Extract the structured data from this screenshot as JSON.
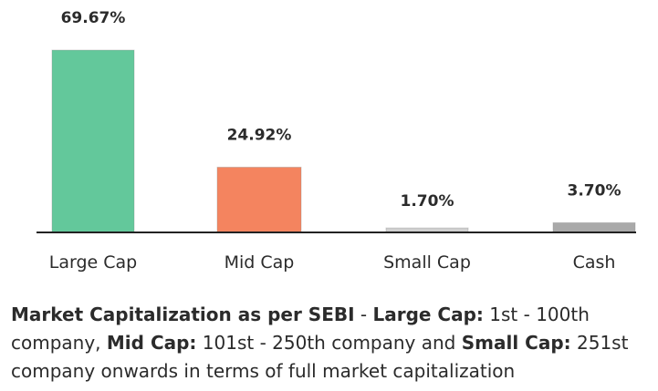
{
  "chart_data": {
    "type": "bar",
    "title": "",
    "xlabel": "",
    "ylabel": "",
    "ylim": [
      0,
      69.67
    ],
    "categories": [
      "Large Cap",
      "Mid Cap",
      "Small Cap",
      "Cash"
    ],
    "values": [
      69.67,
      24.92,
      1.7,
      3.7
    ],
    "value_labels": [
      "69.67%",
      "24.92%",
      "1.70%",
      "3.70%"
    ],
    "colors": [
      "#63c89b",
      "#f4845f",
      "#cfcfcf",
      "#a9a9a9"
    ],
    "grid": false,
    "legend": "none"
  },
  "footnote": {
    "term1": "Market Capitalization as per SEBI",
    "sep1": " - ",
    "term2": "Large Cap:",
    "text2": " 1st - 100th company, ",
    "term3": "Mid Cap:",
    "text3": " 101st - 250th company and ",
    "term4": "Small Cap:",
    "text4": " 251st company onwards in terms of full market capitalization"
  }
}
